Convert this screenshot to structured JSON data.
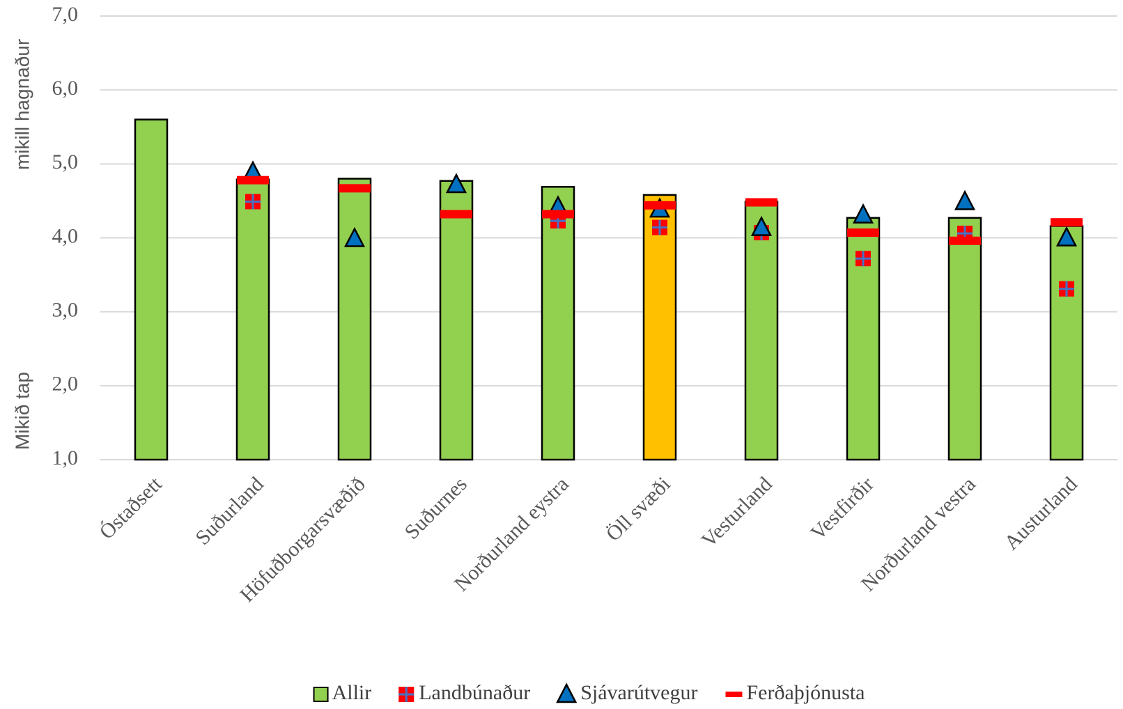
{
  "chart_data": {
    "type": "bar",
    "y_label_top": "mikill hagnaður",
    "y_label_bottom": "Mikið tap",
    "categories": [
      "Óstaðsett",
      "Suðurland",
      "Höfuðborgarsvæðið",
      "Suðurnes",
      "Norðurland eystra",
      "Öll svæði",
      "Vesturland",
      "Vestfirðir",
      "Norðurland vestra",
      "Austurland"
    ],
    "series": [
      {
        "name": "Allir",
        "type": "bar",
        "color": "#92d050",
        "colors": [
          "#92d050",
          "#92d050",
          "#92d050",
          "#92d050",
          "#92d050",
          "#ffc000",
          "#92d050",
          "#92d050",
          "#92d050",
          "#92d050"
        ],
        "values": [
          5.6,
          4.79,
          4.8,
          4.77,
          4.69,
          4.58,
          4.49,
          4.27,
          4.27,
          4.16
        ]
      },
      {
        "name": "Landbúnaður",
        "type": "square",
        "color": "#ff0000",
        "values": [
          null,
          4.49,
          null,
          null,
          4.23,
          4.14,
          4.07,
          3.72,
          4.06,
          3.31
        ]
      },
      {
        "name": "Sjávarútvegur",
        "type": "triangle",
        "color": "#0070c0",
        "values": [
          null,
          4.89,
          3.99,
          4.72,
          4.42,
          4.39,
          4.14,
          4.31,
          4.49,
          4.0
        ]
      },
      {
        "name": "Ferðaþjónusta",
        "type": "dash",
        "color": "#ff0000",
        "values": [
          null,
          4.78,
          4.67,
          4.32,
          4.32,
          4.44,
          4.48,
          4.07,
          3.96,
          4.21
        ]
      }
    ],
    "ylim": [
      1,
      7
    ],
    "yticks": [
      {
        "value": 1,
        "label": "1,0"
      },
      {
        "value": 2,
        "label": "2,0"
      },
      {
        "value": 3,
        "label": "3,0"
      },
      {
        "value": 4,
        "label": "4,0"
      },
      {
        "value": 5,
        "label": "5,0"
      },
      {
        "value": 6,
        "label": "6,0"
      },
      {
        "value": 7,
        "label": "7,0"
      }
    ],
    "grid": true,
    "legend": "bottom"
  }
}
